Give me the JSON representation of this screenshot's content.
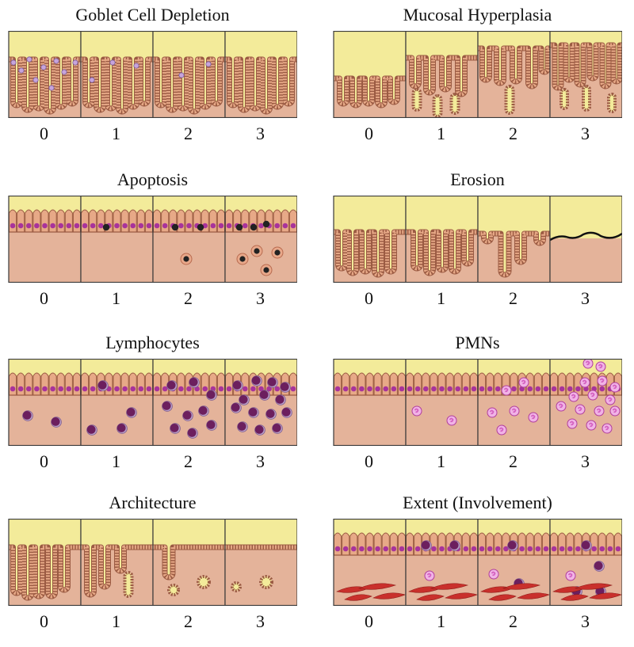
{
  "colors": {
    "lumen": "#f3eb9a",
    "tissue": "#e4b39a",
    "tissue_dark": "#d79e85",
    "epithelium": "#e7a987",
    "epithelium_stroke": "#9b5b43",
    "nucleus": "#a8339b",
    "goblet": "#c7a4dc",
    "apoptotic": "#222222",
    "lymphocyte": "#6c1f5e",
    "pmn": "#d460c0",
    "muscle": "#c9302c",
    "border": "#3a3a3a"
  },
  "panels": [
    {
      "id": "goblet",
      "title": "Goblet Cell Depletion",
      "type": "crypt-goblet",
      "grades": [
        "0",
        "1",
        "2",
        "3"
      ]
    },
    {
      "id": "hyperplasia",
      "title": "Mucosal Hyperplasia",
      "type": "crypt-hyper",
      "grades": [
        "0",
        "1",
        "2",
        "3"
      ]
    },
    {
      "id": "apoptosis",
      "title": "Apoptosis",
      "type": "epi-apoptosis",
      "grades": [
        "0",
        "1",
        "2",
        "3"
      ]
    },
    {
      "id": "erosion",
      "title": "Erosion",
      "type": "crypt-erosion",
      "grades": [
        "0",
        "1",
        "2",
        "3"
      ]
    },
    {
      "id": "lymphocytes",
      "title": "Lymphocytes",
      "type": "epi-lympho",
      "grades": [
        "0",
        "1",
        "2",
        "3"
      ]
    },
    {
      "id": "pmns",
      "title": "PMNs",
      "type": "epi-pmn",
      "grades": [
        "0",
        "1",
        "2",
        "3"
      ]
    },
    {
      "id": "architecture",
      "title": "Architecture",
      "type": "crypt-arch",
      "grades": [
        "0",
        "1",
        "2",
        "3"
      ]
    },
    {
      "id": "extent",
      "title": "Extent (Involvement)",
      "type": "epi-extent",
      "grades": [
        "0",
        "1",
        "2",
        "3"
      ]
    }
  ]
}
